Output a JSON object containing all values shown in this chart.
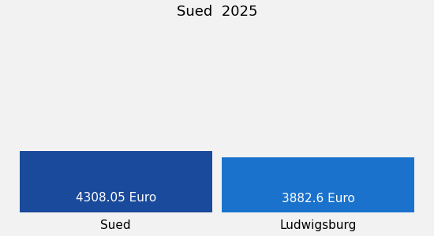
{
  "title": "Sued  2025",
  "categories": [
    "Sued",
    "Ludwigsburg"
  ],
  "values": [
    4308.05,
    3882.6
  ],
  "bar_colors": [
    "#1a4a9c",
    "#1a72cc"
  ],
  "value_labels": [
    "4308.05 Euro",
    "3882.6 Euro"
  ],
  "value_label_color": "#ffffff",
  "background_color": "#f2f2f2",
  "title_fontsize": 13,
  "label_fontsize": 11,
  "value_fontsize": 11,
  "ylim": [
    0,
    13000
  ]
}
